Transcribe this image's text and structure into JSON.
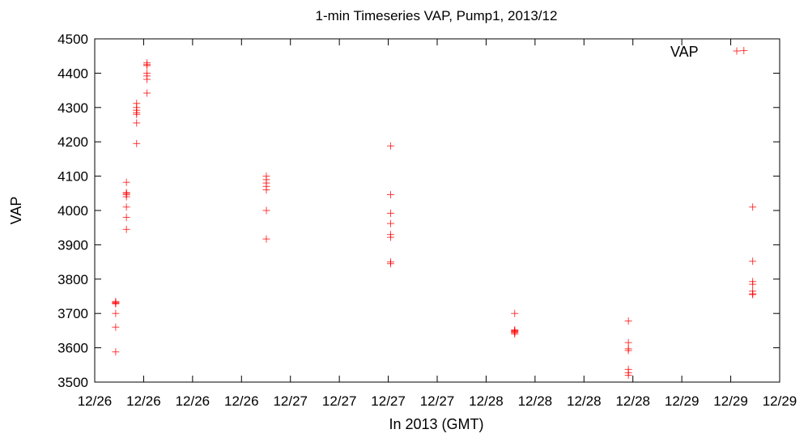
{
  "chart_data": {
    "type": "scatter",
    "title": "1-min Timeseries VAP, Pump1, 2013/12",
    "xlabel": "In 2013 (GMT)",
    "ylabel": "VAP",
    "ylim": [
      3500,
      4500
    ],
    "yticks": [
      3500,
      3600,
      3700,
      3800,
      3900,
      4000,
      4100,
      4200,
      4300,
      4400,
      4500
    ],
    "xlim": [
      0,
      3.5
    ],
    "xticks": [
      0,
      0.25,
      0.5,
      0.75,
      1.0,
      1.25,
      1.5,
      1.75,
      2.0,
      2.25,
      2.5,
      2.75,
      3.0,
      3.25,
      3.5
    ],
    "xtick_labels": [
      "12/26",
      "12/26",
      "12/26",
      "12/26",
      "12/27",
      "12/27",
      "12/27",
      "12/27",
      "12/28",
      "12/28",
      "12/28",
      "12/28",
      "12/29",
      "12/29",
      "12/29"
    ],
    "grid": false,
    "legend_position": "top-right",
    "marker": "plus",
    "color": "#ff0000",
    "series": [
      {
        "name": "VAP",
        "points": [
          [
            0.107,
            3730
          ],
          [
            0.107,
            3728
          ],
          [
            0.107,
            3735
          ],
          [
            0.107,
            3732
          ],
          [
            0.107,
            3700
          ],
          [
            0.107,
            3660
          ],
          [
            0.107,
            3588
          ],
          [
            0.162,
            4082
          ],
          [
            0.162,
            4050
          ],
          [
            0.162,
            4046
          ],
          [
            0.162,
            4052
          ],
          [
            0.162,
            4040
          ],
          [
            0.162,
            4010
          ],
          [
            0.162,
            3980
          ],
          [
            0.162,
            3945
          ],
          [
            0.214,
            4312
          ],
          [
            0.214,
            4300
          ],
          [
            0.214,
            4292
          ],
          [
            0.214,
            4285
          ],
          [
            0.214,
            4280
          ],
          [
            0.214,
            4255
          ],
          [
            0.214,
            4195
          ],
          [
            0.267,
            4430
          ],
          [
            0.267,
            4422
          ],
          [
            0.267,
            4425
          ],
          [
            0.267,
            4400
          ],
          [
            0.267,
            4392
          ],
          [
            0.267,
            4382
          ],
          [
            0.267,
            4342
          ],
          [
            0.877,
            4100
          ],
          [
            0.877,
            4090
          ],
          [
            0.877,
            4080
          ],
          [
            0.877,
            4070
          ],
          [
            0.877,
            4060
          ],
          [
            0.877,
            4000
          ],
          [
            0.877,
            3917
          ],
          [
            1.512,
            4188
          ],
          [
            1.512,
            4046
          ],
          [
            1.512,
            3992
          ],
          [
            1.512,
            3962
          ],
          [
            1.512,
            3930
          ],
          [
            1.512,
            3922
          ],
          [
            1.512,
            3850
          ],
          [
            1.512,
            3845
          ],
          [
            2.146,
            3700
          ],
          [
            2.146,
            3650
          ],
          [
            2.146,
            3648
          ],
          [
            2.146,
            3646
          ],
          [
            2.146,
            3644
          ],
          [
            2.146,
            3652
          ],
          [
            2.146,
            3640
          ],
          [
            2.727,
            3678
          ],
          [
            2.727,
            3615
          ],
          [
            2.727,
            3597
          ],
          [
            2.727,
            3592
          ],
          [
            2.727,
            3537
          ],
          [
            2.727,
            3527
          ],
          [
            2.727,
            3520
          ],
          [
            3.317,
            4466
          ],
          [
            3.362,
            4010
          ],
          [
            3.362,
            3852
          ],
          [
            3.362,
            3793
          ],
          [
            3.362,
            3785
          ],
          [
            3.362,
            3765
          ],
          [
            3.362,
            3757
          ],
          [
            3.362,
            3755
          ]
        ]
      }
    ]
  }
}
